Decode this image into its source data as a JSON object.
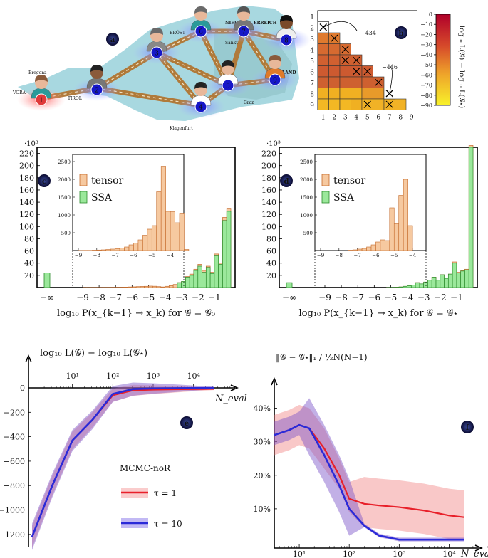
{
  "panel_labels": {
    "a": "a",
    "b": "b",
    "c": "c",
    "d": "d",
    "e": "e",
    "f": "f"
  },
  "map": {
    "nodes": [
      "1",
      "2",
      "3",
      "4",
      "5",
      "6",
      "7",
      "8",
      "9"
    ],
    "place_labels": [
      "Bregenz",
      "VORA",
      "TIROL",
      "Sankt",
      "Graz",
      "Klagenfurt",
      "NIED",
      "ERREICH",
      "LAND",
      "ERÖST"
    ],
    "colors": {
      "region_fill": "#a8d8e0",
      "road": "#b07a3a",
      "node": "#1616c8",
      "node_highlight": "#e03a3a",
      "glow": "#8fa0ff"
    }
  },
  "chart_data": [
    {
      "id": "b",
      "type": "heatmap",
      "row_labels": [
        "1",
        "2",
        "3",
        "4",
        "5",
        "6",
        "7",
        "8",
        "9"
      ],
      "col_labels": [
        "1",
        "2",
        "3",
        "4",
        "5",
        "6",
        "7",
        "8",
        "9"
      ],
      "crossed_cells": [
        [
          2,
          1
        ],
        [
          3,
          2
        ],
        [
          4,
          3
        ],
        [
          4,
          4
        ],
        [
          5,
          3
        ],
        [
          5,
          4
        ],
        [
          5,
          5
        ],
        [
          6,
          4
        ],
        [
          6,
          5
        ],
        [
          6,
          6
        ],
        [
          7,
          6
        ],
        [
          8,
          7
        ],
        [
          9,
          5
        ],
        [
          9,
          7
        ]
      ],
      "annotations": [
        "−434",
        "−446"
      ],
      "colorbar": {
        "label": "log₁₀ L(𝒢) − log₁₀ L(𝒢⋆)",
        "ticks": [
          "0",
          "−10",
          "−20",
          "−30",
          "−40",
          "−50",
          "−60",
          "−70",
          "−80",
          "−90"
        ],
        "range": [
          -90,
          0
        ]
      }
    },
    {
      "id": "c",
      "type": "bar",
      "xlabel": "log₁₀ P(x_{k−1} → x_k) for 𝒢 = 𝒢₀",
      "ylabel_scale": "·10³",
      "y_ticks": [
        "20",
        "40",
        "60",
        "80",
        "100",
        "120",
        "140",
        "160",
        "180",
        "200",
        "220"
      ],
      "x_ticks": [
        "−∞",
        "−9",
        "−8",
        "−7",
        "−6",
        "−5",
        "−4",
        "−3",
        "−2",
        "−1"
      ],
      "ylim": [
        0,
        230
      ],
      "series": [
        {
          "name": "tensor",
          "bins": [
            -9.0,
            -8.75,
            -8.5,
            -8.25,
            -8.0,
            -7.75,
            -7.5,
            -7.25,
            -7.0,
            -6.75,
            -6.5,
            -6.25,
            -6.0,
            -5.75,
            -5.5,
            -5.25,
            -5.0,
            -4.75,
            -4.5,
            -4.25,
            -4.0,
            -3.75,
            -3.5,
            -3.25,
            -3.0,
            -2.75,
            -2.5,
            -2.25,
            -2.0,
            -1.75,
            -1.5,
            -1.25,
            -1.0,
            -0.75,
            -0.5,
            -0.25
          ],
          "values": [
            0.05,
            0.05,
            0.1,
            0.1,
            0.15,
            0.2,
            0.25,
            0.3,
            0.4,
            0.5,
            0.7,
            1,
            1.2,
            1.5,
            1.8,
            2,
            2.3,
            2.1,
            1.5,
            1,
            2,
            3,
            5,
            8,
            10,
            18,
            22,
            30,
            38,
            28,
            35,
            25,
            55,
            40,
            115,
            130
          ]
        },
        {
          "name": "SSA",
          "bins": [
            -3.25,
            -3.0,
            -2.75,
            -2.5,
            -2.25,
            -2.0,
            -1.75,
            -1.5,
            -1.25,
            -1.0,
            -0.75,
            -0.5,
            -0.25
          ],
          "values": [
            8,
            10,
            17,
            20,
            28,
            35,
            25,
            33,
            23,
            53,
            38,
            110,
            125
          ],
          "neg_inf": 24
        }
      ],
      "inset": {
        "y_ticks": [
          "500",
          "1000",
          "1500",
          "2000",
          "2500"
        ],
        "x_ticks": [
          "−9",
          "−8",
          "−7",
          "−6",
          "−5",
          "−4"
        ],
        "legend": [
          "tensor",
          "SSA"
        ],
        "values": [
          2,
          5,
          5,
          10,
          15,
          20,
          30,
          40,
          55,
          70,
          100,
          160,
          210,
          300,
          430,
          600,
          700,
          1650,
          2370,
          1100,
          1090,
          780,
          1050,
          30
        ]
      }
    },
    {
      "id": "d",
      "type": "bar",
      "xlabel": "log₁₀ P(x_{k−1} → x_k) for 𝒢 = 𝒢⋆",
      "ylabel_scale": "·10³",
      "y_ticks": [
        "20",
        "40",
        "60",
        "80",
        "100",
        "120",
        "140",
        "160",
        "180",
        "200",
        "220"
      ],
      "x_ticks": [
        "−∞",
        "−9",
        "−8",
        "−7",
        "−6",
        "−5",
        "−4",
        "−3",
        "−2",
        "−1"
      ],
      "ylim": [
        0,
        230
      ],
      "series": [
        {
          "name": "tensor",
          "values": [
            0.1,
            0.2,
            0.5,
            1,
            2,
            3,
            4,
            8,
            6,
            9,
            12,
            17,
            12,
            21,
            15,
            22,
            42,
            25,
            28,
            30,
            233
          ]
        },
        {
          "name": "SSA",
          "values": [
            0.1,
            0.2,
            0.5,
            1,
            2,
            3,
            4,
            8,
            6,
            9,
            12,
            17,
            12,
            21,
            15,
            22,
            40,
            24,
            27,
            29,
            230
          ],
          "neg_inf": 8
        }
      ],
      "inset": {
        "y_ticks": [
          "500",
          "1000",
          "1500",
          "2000",
          "2500"
        ],
        "x_ticks": [
          "−9",
          "−8",
          "−7",
          "−6",
          "−5",
          "−4"
        ],
        "legend": [
          "tensor",
          "SSA"
        ],
        "values": [
          10,
          20,
          40,
          60,
          100,
          160,
          240,
          300,
          280,
          1200,
          750,
          1550,
          2000,
          700
        ]
      }
    },
    {
      "id": "e",
      "type": "line",
      "ylabel": "log₁₀ L(𝒢) − log₁₀ L(𝒢⋆)",
      "xlabel": "N_eval",
      "x_ticks": [
        "10¹",
        "10²",
        "10³",
        "10⁴"
      ],
      "y_ticks": [
        "0",
        "−200",
        "−400",
        "−600",
        "−800",
        "−1000",
        "−1200"
      ],
      "ylim": [
        -1300,
        0
      ],
      "legend_title": "MCMC-noR",
      "series": [
        {
          "name": "τ = 1",
          "color": "#e8202a",
          "x": [
            0,
            0.5,
            1,
            1.5,
            2,
            2.5,
            3,
            3.5,
            4,
            4.5
          ],
          "y": [
            -1220,
            -800,
            -430,
            -260,
            -60,
            -20,
            -15,
            -12,
            -10,
            -9
          ]
        },
        {
          "name": "τ = 10",
          "color": "#2a2ad8",
          "x": [
            0,
            0.5,
            1,
            1.5,
            2,
            2.5,
            3,
            3.5,
            4,
            4.5
          ],
          "y": [
            -1220,
            -800,
            -430,
            -260,
            -50,
            -10,
            -5,
            -3,
            -2,
            -1
          ]
        }
      ]
    },
    {
      "id": "f",
      "type": "line",
      "ylabel": "‖𝒢 − 𝒢⋆‖₁ / ½N(N−1)",
      "xlabel": "N_eval",
      "x_ticks": [
        "10¹",
        "10²",
        "10³",
        "10⁴"
      ],
      "y_ticks": [
        "10%",
        "20%",
        "30%",
        "40%"
      ],
      "ylim": [
        0,
        45
      ],
      "series": [
        {
          "name": "τ = 1",
          "color": "#e8202a",
          "x": [
            0.5,
            0.8,
            1.0,
            1.2,
            1.5,
            1.8,
            2.0,
            2.3,
            2.6,
            3.0,
            3.5,
            4.0,
            4.3
          ],
          "y": [
            32,
            33.5,
            35,
            34,
            28,
            20,
            13,
            11.5,
            11,
            10.5,
            9.5,
            8,
            7.5
          ]
        },
        {
          "name": "τ = 10",
          "color": "#2a2ad8",
          "x": [
            0.5,
            0.8,
            1.0,
            1.2,
            1.5,
            1.8,
            2.0,
            2.3,
            2.6,
            3.0,
            3.5,
            4.0,
            4.3
          ],
          "y": [
            32,
            33.5,
            35,
            34,
            26,
            17,
            10,
            5,
            2,
            0.8,
            0.8,
            0.8,
            0.8
          ]
        }
      ]
    }
  ]
}
